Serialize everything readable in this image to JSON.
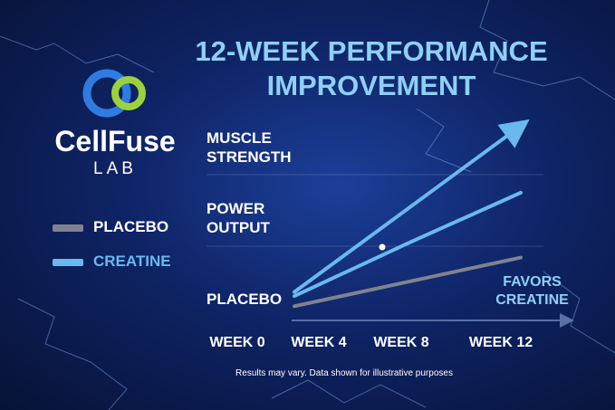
{
  "logo": {
    "name": "CellFuse",
    "sub": "LAB"
  },
  "chart_data": {
    "type": "line",
    "title": "12-WEEK PERFORMANCE IMPROVEMENT",
    "categories": [
      "WEEK 0",
      "WEEK 4",
      "WEEK 8",
      "WEEK 12"
    ],
    "y_labels": [
      "MUSCLE STRENGTH",
      "POWER OUTPUT",
      "PLACEBO"
    ],
    "annotation": "FAVORS CREATINE",
    "footnote": "Results may vary. Data shown for illustrative purposes",
    "ylim": [
      0,
      100
    ],
    "series": [
      {
        "name": "PLACEBO",
        "color": "#80838f",
        "values": [
          null,
          7,
          19,
          31
        ]
      },
      {
        "name": "CREATINE",
        "color": "#6ab8f0",
        "values": [
          null,
          12,
          38,
          63
        ]
      },
      {
        "color": "#6ab8f0",
        "values": [
          null,
          14,
          55,
          96
        ]
      }
    ]
  }
}
